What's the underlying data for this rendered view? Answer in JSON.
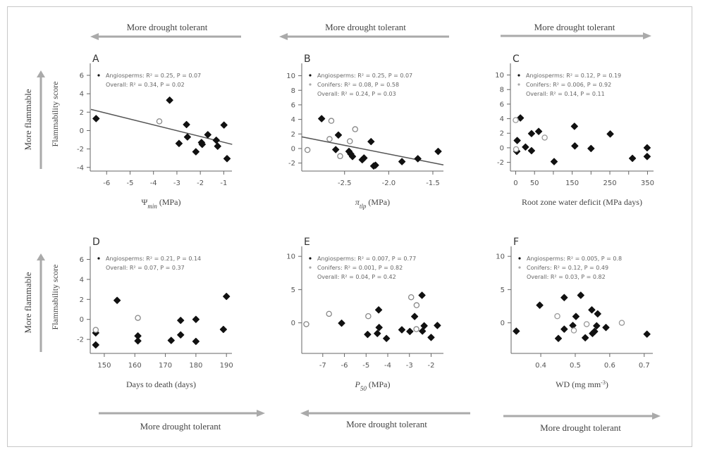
{
  "annotations": {
    "drought_label": "More drought tolerant",
    "flammable_label": "More flammable",
    "ylabel": "Flammability score",
    "arrow_color": "#aaaaaa"
  },
  "chart_data": [
    {
      "type": "scatter",
      "panel": "A",
      "xlabel": [
        {
          "t": "Ψ"
        },
        {
          "t": "min",
          "sub": true
        },
        {
          "t": " (MPa)"
        }
      ],
      "ylabel": "Flammability score",
      "xlim": [
        -6.7,
        -0.65
      ],
      "ylim": [
        -4.4,
        7.3
      ],
      "xticks": [
        -6,
        -5,
        -4,
        -3,
        -2,
        -1
      ],
      "xtick_labels": [
        "-6",
        "-5",
        "-4",
        "-3",
        "-2",
        "-1"
      ],
      "yticks": [
        -4,
        -2,
        0,
        2,
        4,
        6
      ],
      "ytick_labels": [
        "-4",
        "-2",
        "0",
        "2",
        "4",
        "6"
      ],
      "drought_arrow": "left",
      "legend": [
        "Angiosperms: R² = 0.25, P = 0.07",
        "Overall: R² = 0.34, P = 0.02"
      ],
      "legend_markers": [
        "angiosperm",
        null
      ],
      "series": [
        {
          "name": "Angiosperms",
          "marker": "filled",
          "color": "#111111",
          "x": [
            -6.45,
            -3.31,
            -2.91,
            -2.59,
            -2.55,
            -2.19,
            -1.95,
            -1.92,
            -1.68,
            -1.32,
            -1.26,
            -0.99,
            -0.86
          ],
          "y": [
            1.3,
            3.3,
            -1.4,
            0.65,
            -0.7,
            -2.3,
            -1.3,
            -1.5,
            -0.45,
            -1.05,
            -1.7,
            0.6,
            -3.05
          ]
        },
        {
          "name": "Conifers",
          "marker": "open",
          "color": "#888888",
          "x": [
            -3.75
          ],
          "y": [
            1.0
          ]
        }
      ],
      "fit": {
        "x": [
          -6.67,
          -0.64
        ],
        "y": [
          2.3,
          -1.5
        ]
      }
    },
    {
      "type": "scatter",
      "panel": "B",
      "xlabel": [
        {
          "t": "π",
          "it": true
        },
        {
          "t": "tlp",
          "sub": true
        },
        {
          "t": " (MPa)"
        }
      ],
      "xlim": [
        -2.985,
        -1.38
      ],
      "ylim": [
        -3.1,
        11.7
      ],
      "xticks": [
        -2.5,
        -2.0,
        -1.5
      ],
      "xtick_labels": [
        "-2.5",
        "-2.0",
        "-1.5"
      ],
      "yticks": [
        -2,
        0,
        2,
        4,
        6,
        8,
        10
      ],
      "ytick_labels": [
        "-2",
        "0",
        "2",
        "4",
        "6",
        "8",
        "10"
      ],
      "drought_arrow": "left",
      "legend": [
        "Angiosperms: R² = 0.25, P = 0.07",
        "Conifers: R² = 0.08, P = 0.58",
        "Overall: R² = 0.24, P = 0.03"
      ],
      "legend_markers": [
        "angiosperm",
        "conifer",
        null
      ],
      "series": [
        {
          "name": "Angiosperms",
          "marker": "filled",
          "color": "#111111",
          "x": [
            -2.76,
            -2.57,
            -2.6,
            -2.45,
            -2.43,
            -2.41,
            -2.3,
            -2.28,
            -2.17,
            -2.15,
            -2.2,
            -1.85,
            -1.67,
            -1.44
          ],
          "y": [
            4.1,
            1.85,
            -0.15,
            -0.4,
            -0.75,
            -1.1,
            -1.55,
            -1.3,
            -2.4,
            -2.3,
            0.95,
            -1.8,
            -1.4,
            -0.4
          ]
        },
        {
          "name": "Conifers",
          "marker": "open",
          "color": "#888888",
          "x": [
            -2.65,
            -2.92,
            -2.67,
            -2.55,
            -2.38,
            -2.44
          ],
          "y": [
            3.8,
            -0.2,
            1.3,
            -1.05,
            2.65,
            1.0
          ]
        }
      ],
      "fit": {
        "x": [
          -2.985,
          -1.38
        ],
        "y": [
          1.6,
          -2.25
        ]
      }
    },
    {
      "type": "scatter",
      "panel": "C",
      "xlabel": [
        {
          "t": "Root zone water deficit (MPa days)"
        }
      ],
      "xlim": [
        -14,
        366
      ],
      "ylim": [
        -3.2,
        11.6
      ],
      "xticks": [
        0,
        50,
        100,
        150,
        200,
        250,
        300,
        350
      ],
      "xtick_labels": [
        "0",
        "50",
        "",
        "150",
        "",
        "250",
        "",
        "350"
      ],
      "yticks": [
        -2,
        0,
        2,
        4,
        6,
        8,
        10
      ],
      "ytick_labels": [
        "-2",
        "0",
        "2",
        "4",
        "6",
        "8",
        "10"
      ],
      "drought_arrow": "right",
      "legend": [
        "Angiosperms: R² = 0.12, P = 0.19",
        "Conifers: R² = 0.006, P = 0.92",
        "Overall: R² = 0.14, P = 0.11"
      ],
      "legend_markers": [
        "angiosperm",
        "conifer",
        null
      ],
      "series": [
        {
          "name": "Angiosperms",
          "marker": "filled",
          "color": "#111111",
          "x": [
            12.5,
            4,
            3,
            26,
            42,
            42,
            61,
            102,
            156,
            157,
            200,
            251,
            310,
            349,
            349
          ],
          "y": [
            4.1,
            1.0,
            -0.5,
            0.1,
            1.95,
            -0.4,
            2.25,
            -1.9,
            2.95,
            0.25,
            -0.1,
            1.9,
            -1.45,
            0,
            -1.2
          ]
        },
        {
          "name": "Conifers",
          "marker": "open",
          "color": "#999999",
          "x": [
            0,
            1,
            77
          ],
          "y": [
            3.8,
            -0.2,
            1.4
          ]
        }
      ]
    },
    {
      "type": "scatter",
      "panel": "D",
      "xlabel": [
        {
          "t": "Days to death (days)"
        }
      ],
      "ylabel": "Flammability score",
      "xlim": [
        145.4,
        191.8
      ],
      "ylim": [
        -3.4,
        7.3
      ],
      "xticks": [
        150,
        160,
        170,
        180,
        190
      ],
      "xtick_labels": [
        "150",
        "160",
        "170",
        "180",
        "190"
      ],
      "yticks": [
        -2,
        0,
        2,
        4,
        6
      ],
      "ytick_labels": [
        "-2",
        "0",
        "2",
        "4",
        "6"
      ],
      "drought_arrow": "right",
      "legend": [
        "Angiosperms: R² = 0.21, P = 0.14",
        "Overall: R² = 0.07, P = 0.37"
      ],
      "legend_markers": [
        "angiosperm",
        null
      ],
      "series": [
        {
          "name": "Angiosperms",
          "marker": "filled",
          "color": "#111111",
          "x": [
            147.2,
            147.2,
            154.2,
            161,
            161,
            171.9,
            175,
            175,
            180,
            180,
            189,
            190
          ],
          "y": [
            -1.35,
            -2.55,
            1.9,
            -1.65,
            -2.15,
            -2.1,
            -0.1,
            -1.55,
            0,
            -2.2,
            -1.0,
            2.3
          ]
        },
        {
          "name": "Conifers",
          "marker": "open",
          "color": "#888888",
          "x": [
            147.2,
            161
          ],
          "y": [
            -1.05,
            0.15
          ]
        }
      ]
    },
    {
      "type": "scatter",
      "panel": "E",
      "xlabel": [
        {
          "t": "P",
          "it": true
        },
        {
          "t": "50",
          "sub": true
        },
        {
          "t": " (MPa)"
        }
      ],
      "xlim": [
        -7.97,
        -1.43
      ],
      "ylim": [
        -4.6,
        11.5
      ],
      "xticks": [
        -7,
        -6,
        -5,
        -4,
        -3,
        -2
      ],
      "xtick_labels": [
        "-7",
        "-6",
        "-5",
        "-4",
        "-3",
        "-2"
      ],
      "yticks": [
        0,
        5,
        10
      ],
      "ytick_labels": [
        "0",
        "5",
        "10"
      ],
      "drought_arrow": "left",
      "legend": [
        "Angiosperms: R² = 0.007, P = 0.77",
        "Conifers: R² = 0.001, P = 0.82",
        "Overall: R² = 0.04, P = 0.42"
      ],
      "legend_markers": [
        "angiosperm",
        "conifer",
        null
      ],
      "series": [
        {
          "name": "Angiosperms",
          "marker": "filled",
          "color": "#111111",
          "x": [
            -6.13,
            -4.93,
            -4.42,
            -4.4,
            -4.48,
            -4.06,
            -3.35,
            -2.98,
            -2.76,
            -2.42,
            -2.4,
            -2.32,
            -2.0,
            -1.71
          ],
          "y": [
            -0.05,
            -1.75,
            1.95,
            -0.7,
            -1.6,
            -2.35,
            -1.05,
            -1.3,
            0.95,
            4.15,
            -1.25,
            -0.45,
            -2.2,
            -0.4
          ]
        },
        {
          "name": "Conifers",
          "marker": "open",
          "color": "#888888",
          "x": [
            -7.76,
            -6.71,
            -4.9,
            -2.92,
            -2.67,
            -2.68
          ],
          "y": [
            -0.2,
            1.35,
            1.0,
            3.85,
            2.65,
            -0.95
          ]
        }
      ]
    },
    {
      "type": "scatter",
      "panel": "F",
      "xlabel": [
        {
          "t": "WD (mg mm"
        },
        {
          "t": "-3",
          "sup": true
        },
        {
          "t": ")"
        }
      ],
      "xlim": [
        0.314,
        0.725
      ],
      "ylim": [
        -4.6,
        11.5
      ],
      "xticks": [
        0.4,
        0.5,
        0.6,
        0.7
      ],
      "xtick_labels": [
        "0.4",
        "0.5",
        "0.6",
        "0.7"
      ],
      "yticks": [
        0,
        5,
        10
      ],
      "ytick_labels": [
        "0",
        "5",
        "10"
      ],
      "drought_arrow": "right",
      "legend": [
        "Angiosperms: R² = 0.005, P = 0.8",
        "Conifers: R² = 0.12, P = 0.49",
        "Overall: R² = 0.03, P = 0.82"
      ],
      "legend_markers": [
        "angiosperm",
        "conifer",
        null
      ],
      "series": [
        {
          "name": "Angiosperms",
          "marker": "filled",
          "color": "#111111",
          "x": [
            0.329,
            0.397,
            0.451,
            0.468,
            0.468,
            0.493,
            0.502,
            0.516,
            0.529,
            0.548,
            0.565,
            0.55,
            0.556,
            0.562,
            0.589,
            0.708
          ],
          "y": [
            -1.25,
            2.65,
            -2.35,
            3.8,
            -0.95,
            -0.4,
            0.95,
            4.15,
            -2.25,
            1.95,
            1.35,
            -1.6,
            -1.3,
            -0.45,
            -0.7,
            -1.7
          ]
        },
        {
          "name": "Conifers",
          "marker": "open",
          "color": "#999999",
          "x": [
            0.448,
            0.496,
            0.533,
            0.635
          ],
          "y": [
            1.0,
            -1.15,
            -0.2,
            0
          ]
        }
      ]
    }
  ]
}
